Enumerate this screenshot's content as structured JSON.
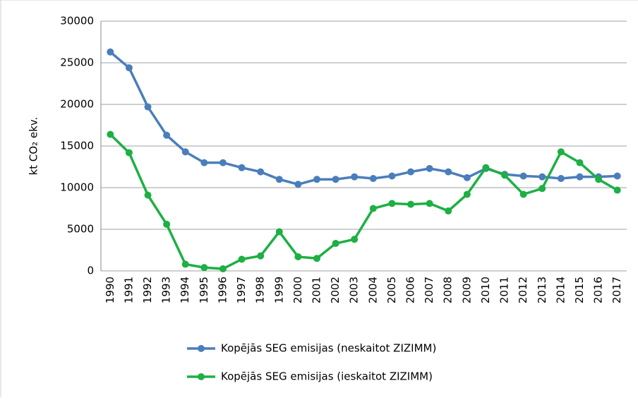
{
  "chart_data": {
    "type": "line",
    "ylabel": "kt CO₂ ekv.",
    "categories": [
      "1990",
      "1991",
      "1992",
      "1993",
      "1994",
      "1995",
      "1996",
      "1997",
      "1998",
      "1999",
      "2000",
      "2001",
      "2002",
      "2003",
      "2004",
      "2005",
      "2006",
      "2007",
      "2008",
      "2009",
      "2010",
      "2011",
      "2012",
      "2013",
      "2014",
      "2015",
      "2016",
      "2017"
    ],
    "series": [
      {
        "name": "Kopējās SEG emisijas (neskaitot ZIZIMM)",
        "color": "#4a7ebb",
        "values": [
          26300,
          24400,
          19700,
          16300,
          14300,
          13000,
          13000,
          12400,
          11900,
          11000,
          10400,
          11000,
          11000,
          11300,
          11100,
          11400,
          11900,
          12300,
          11900,
          11200,
          12300,
          11600,
          11400,
          11300,
          11100,
          11300,
          11300,
          11400
        ]
      },
      {
        "name": "Kopējās SEG emisijas (ieskaitot ZIZIMM)",
        "color": "#1db043",
        "values": [
          16400,
          14200,
          9100,
          5600,
          800,
          400,
          250,
          1400,
          1800,
          4700,
          1700,
          1500,
          3300,
          3800,
          7500,
          8100,
          8000,
          8100,
          7200,
          9200,
          12400,
          11500,
          9200,
          9900,
          14300,
          13000,
          11000,
          9700
        ]
      }
    ],
    "ylim": [
      0,
      30000
    ],
    "yticks": [
      0,
      5000,
      10000,
      15000,
      20000,
      25000,
      30000
    ],
    "grid": true,
    "legend": "bottom"
  }
}
